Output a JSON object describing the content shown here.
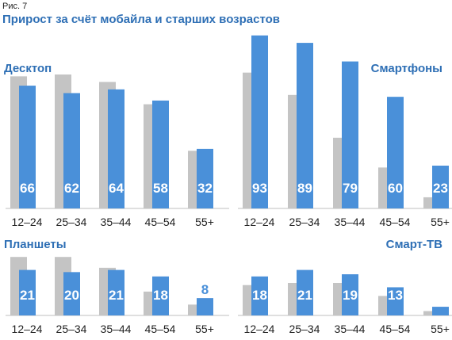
{
  "figure": {
    "label": "Рис. 7",
    "title": "Прирост за счёт мобайла и старших возрастов"
  },
  "colors": {
    "gray_series": "#c4c4c4",
    "blue_series": "#4a90d9",
    "title": "#2e6fb5",
    "axis": "#bfbfbf"
  },
  "chart_data": [
    {
      "type": "bar",
      "title": "Десктоп",
      "categories": [
        "12–24",
        "25–34",
        "35–44",
        "45–54",
        "55+"
      ],
      "series": [
        {
          "values": [
            71,
            72,
            68,
            56,
            31
          ]
        },
        {
          "values": [
            66,
            62,
            64,
            58,
            32
          ]
        }
      ],
      "data_labels": [
        "66",
        "62",
        "64",
        "58",
        "32"
      ],
      "ylim": [
        0,
        95
      ]
    },
    {
      "type": "bar",
      "title": "Смартфоны",
      "categories": [
        "12–24",
        "25–34",
        "35–44",
        "45–54",
        "55+"
      ],
      "series": [
        {
          "values": [
            73,
            61,
            38,
            22,
            6
          ]
        },
        {
          "values": [
            93,
            89,
            79,
            60,
            23
          ]
        }
      ],
      "data_labels": [
        "93",
        "89",
        "79",
        "60",
        "23"
      ],
      "ylim": [
        0,
        95
      ]
    },
    {
      "type": "bar",
      "title": "Планшеты",
      "categories": [
        "12–24",
        "25–34",
        "35–44",
        "45–54",
        "55+"
      ],
      "series": [
        {
          "values": [
            27,
            27,
            22,
            11,
            5
          ]
        },
        {
          "values": [
            21,
            20,
            21,
            18,
            8
          ]
        }
      ],
      "data_labels": [
        "21",
        "20",
        "21",
        "18",
        "8"
      ],
      "ylim": [
        0,
        30
      ]
    },
    {
      "type": "bar",
      "title": "Смарт-ТВ",
      "categories": [
        "12–24",
        "25–34",
        "35–44",
        "45–54",
        "55+"
      ],
      "series": [
        {
          "values": [
            14,
            15,
            15,
            9,
            2
          ]
        },
        {
          "values": [
            18,
            21,
            19,
            13,
            4
          ]
        }
      ],
      "data_labels": [
        "18",
        "21",
        "19",
        "13",
        ""
      ],
      "ylim": [
        0,
        30
      ]
    }
  ]
}
